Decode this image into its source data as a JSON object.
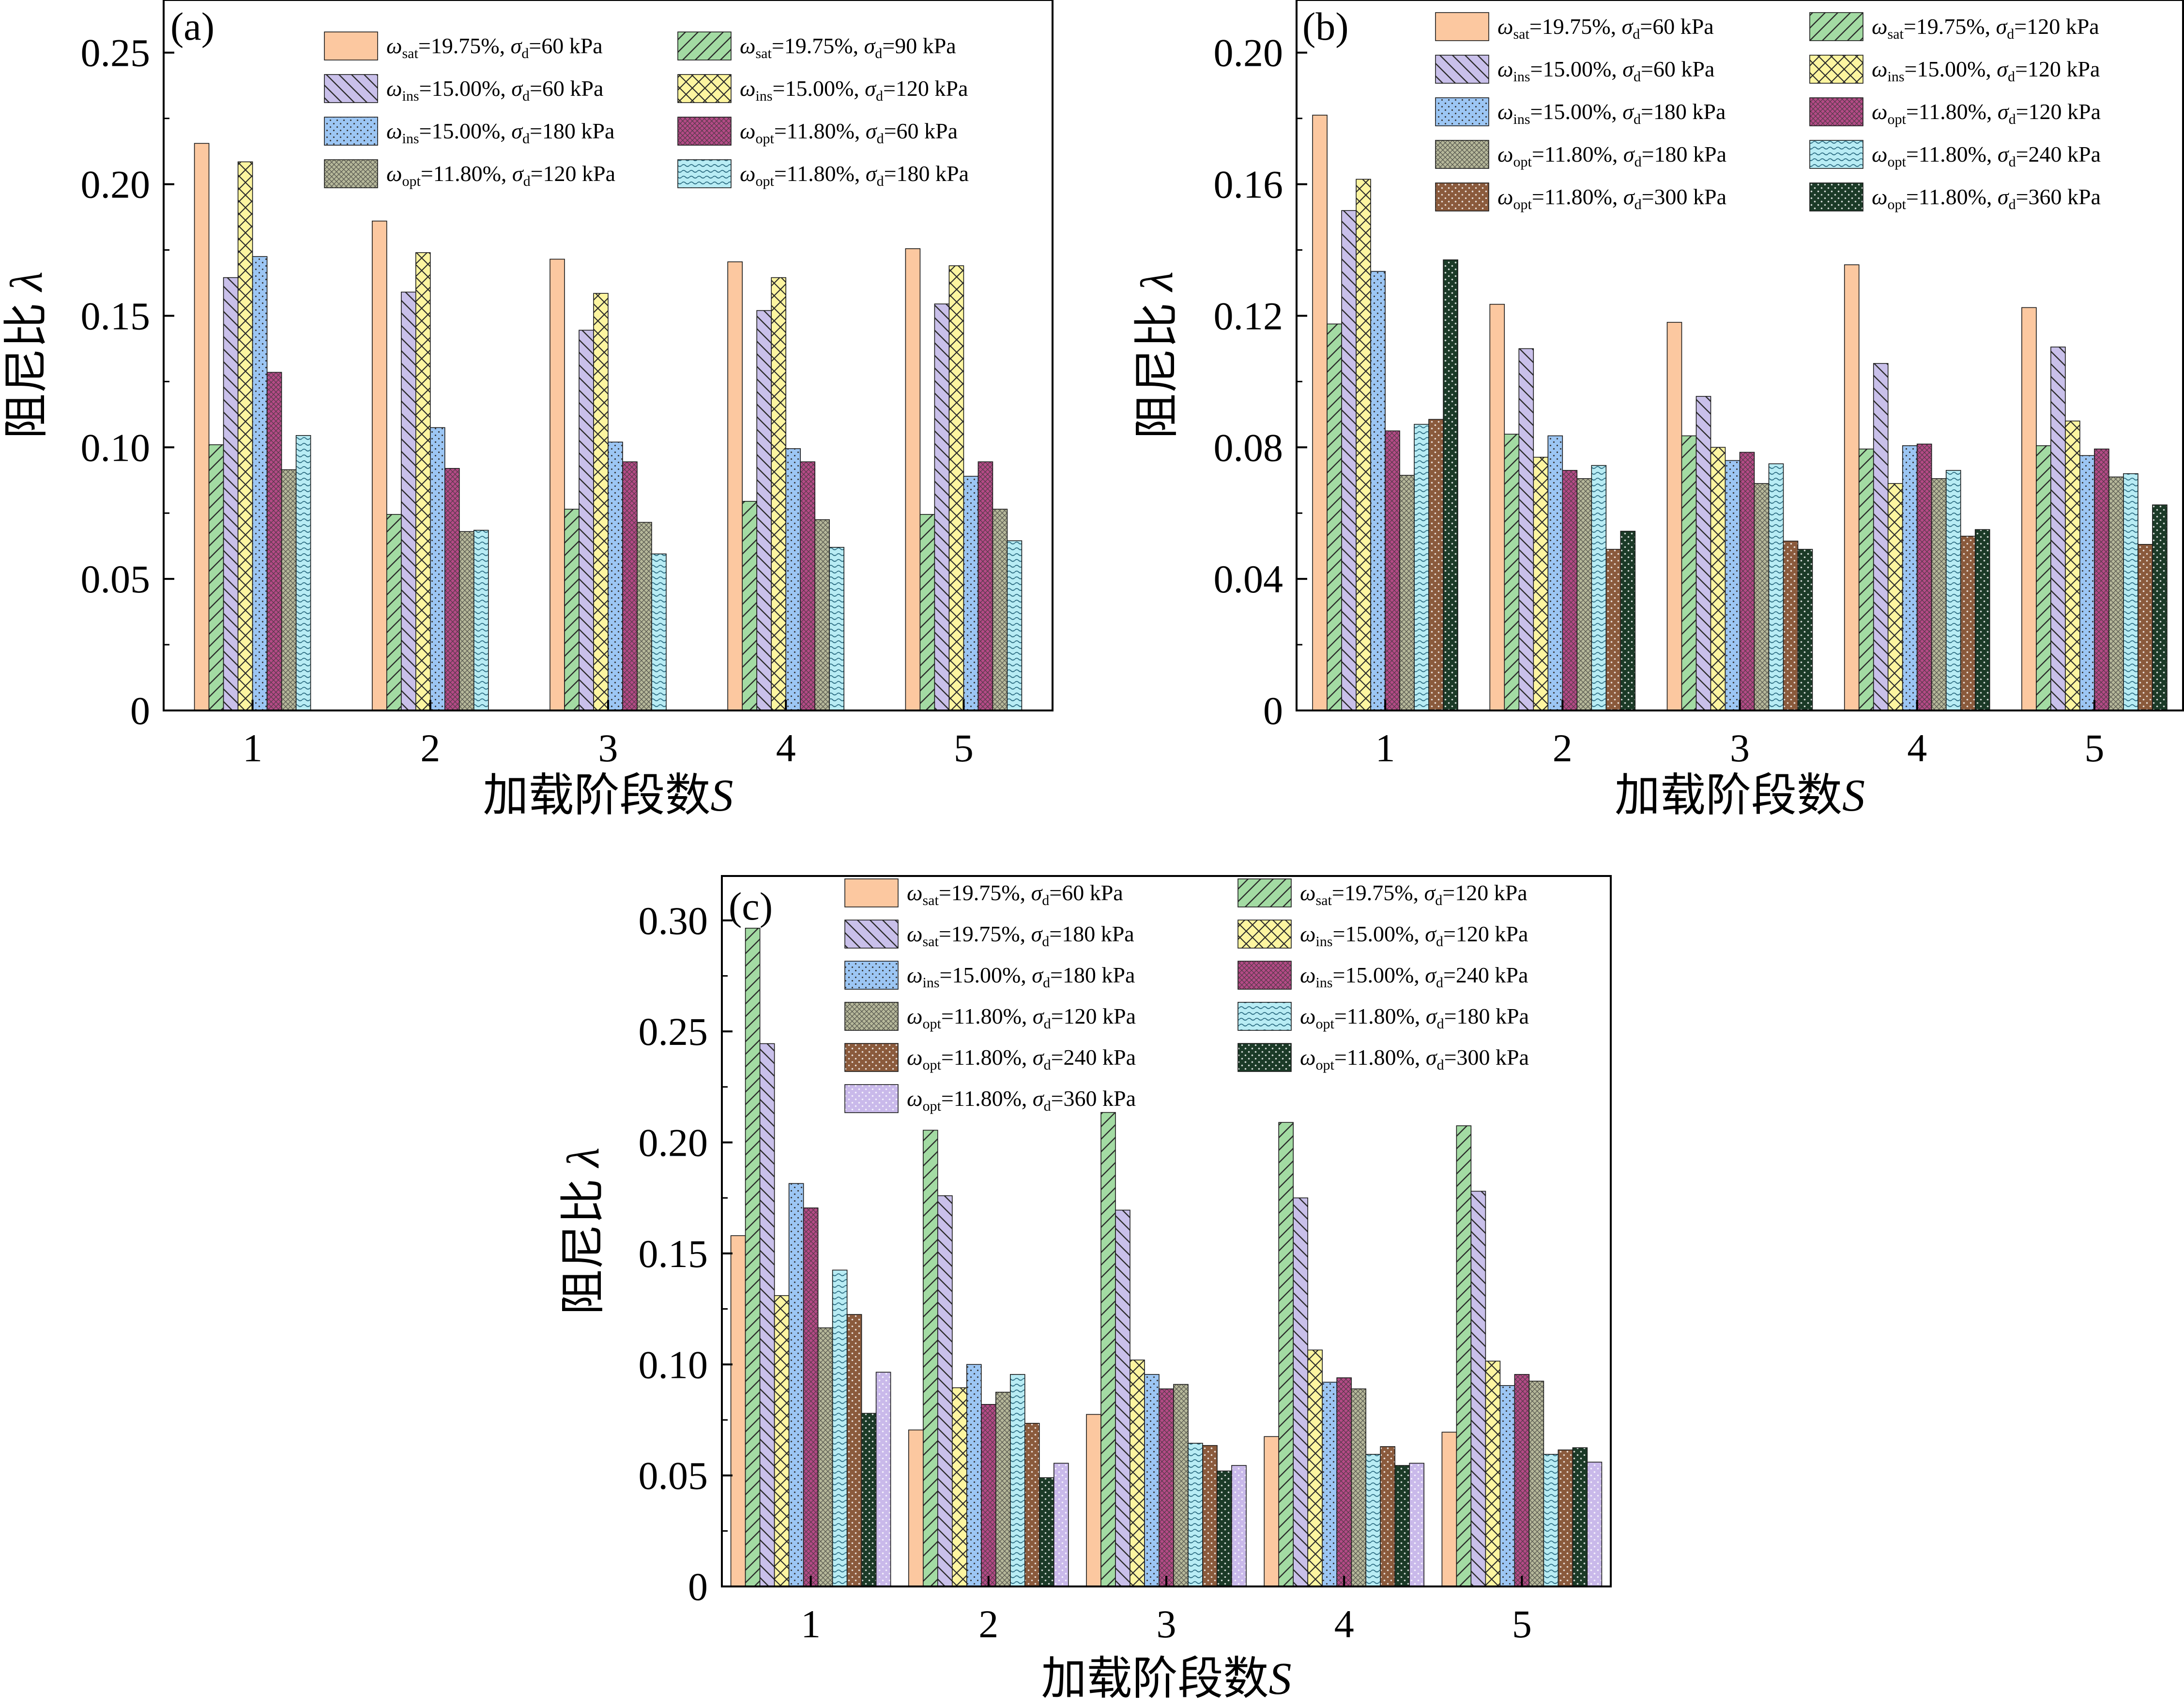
{
  "chart_data": [
    {
      "type": "bar",
      "panel_label": "(a)",
      "xlabel_main": "加载阶段数",
      "xlabel_var": "S",
      "ylabel_main": "阻尼比",
      "ylabel_var": "λ",
      "categories": [
        "1",
        "2",
        "3",
        "4",
        "5"
      ],
      "ylim": [
        0,
        0.27
      ],
      "yticks": [
        0,
        0.05,
        0.1,
        0.15,
        0.2,
        0.25
      ],
      "ytick_labels": [
        "0",
        "0.05",
        "0.10",
        "0.15",
        "0.20",
        "0.25"
      ],
      "legend_placement": "top",
      "series": [
        {
          "name": "ω_sat=19.75%, σ_d=60 kPa",
          "w": "ω",
          "wsub": "sat",
          "wval": "=19.75%,",
          "s": "σ",
          "ssub": "d",
          "sval": "=60 kPa",
          "color": "#fcc8a0",
          "pattern": "none",
          "values": [
            0.2155,
            0.186,
            0.1715,
            0.1705,
            0.1755
          ]
        },
        {
          "name": "ω_sat=19.75%, σ_d=90 kPa",
          "w": "ω",
          "wsub": "sat",
          "wval": "=19.75%,",
          "s": "σ",
          "ssub": "d",
          "sval": "=90 kPa",
          "color": "#a3dba3",
          "pattern": "slash",
          "values": [
            0.101,
            0.0745,
            0.0765,
            0.0795,
            0.0745
          ]
        },
        {
          "name": "ω_ins=15.00%, σ_d=60 kPa",
          "w": "ω",
          "wsub": "ins",
          "wval": "=15.00%,",
          "s": "σ",
          "ssub": "d",
          "sval": "=60 kPa",
          "color": "#c9c0ea",
          "pattern": "backslash",
          "values": [
            0.1645,
            0.159,
            0.1445,
            0.152,
            0.1545
          ]
        },
        {
          "name": "ω_ins=15.00%, σ_d=120 kPa",
          "w": "ω",
          "wsub": "ins",
          "wval": "=15.00%,",
          "s": "σ",
          "ssub": "d",
          "sval": "=120 kPa",
          "color": "#fdf5a0",
          "pattern": "cross",
          "values": [
            0.2085,
            0.174,
            0.1585,
            0.1645,
            0.169
          ]
        },
        {
          "name": "ω_ins=15.00%, σ_d=180 kPa",
          "w": "ω",
          "wsub": "ins",
          "wval": "=15.00%,",
          "s": "σ",
          "ssub": "d",
          "sval": "=180 kPa",
          "color": "#9cc6f4",
          "pattern": "dots",
          "values": [
            0.1725,
            0.1075,
            0.102,
            0.0995,
            0.089
          ]
        },
        {
          "name": "ω_opt=11.80%, σ_d=60 kPa",
          "w": "ω",
          "wsub": "opt",
          "wval": "=11.80%,",
          "s": "σ",
          "ssub": "d",
          "sval": "=60 kPa",
          "color": "#b44a86",
          "pattern": "dense",
          "values": [
            0.1285,
            0.092,
            0.0945,
            0.0945,
            0.0945
          ]
        },
        {
          "name": "ω_opt=11.80%, σ_d=120 kPa",
          "w": "ω",
          "wsub": "opt",
          "wval": "=11.80%,",
          "s": "σ",
          "ssub": "d",
          "sval": "=120 kPa",
          "color": "#b6b89a",
          "pattern": "dense",
          "values": [
            0.0915,
            0.068,
            0.0715,
            0.0725,
            0.0765
          ]
        },
        {
          "name": "ω_opt=11.80%, σ_d=180 kPa",
          "w": "ω",
          "wsub": "opt",
          "wval": "=11.80%,",
          "s": "σ",
          "ssub": "d",
          "sval": "=180 kPa",
          "color": "#b8ecf4",
          "pattern": "wave",
          "values": [
            0.1045,
            0.0685,
            0.0595,
            0.062,
            0.0645
          ]
        }
      ]
    },
    {
      "type": "bar",
      "panel_label": "(b)",
      "xlabel_main": "加载阶段数",
      "xlabel_var": "S",
      "ylabel_main": "阻尼比",
      "ylabel_var": "λ",
      "categories": [
        "1",
        "2",
        "3",
        "4",
        "5"
      ],
      "ylim": [
        0,
        0.216
      ],
      "yticks": [
        0,
        0.04,
        0.08,
        0.12,
        0.16,
        0.2
      ],
      "ytick_labels": [
        "0",
        "0.04",
        "0.08",
        "0.12",
        "0.16",
        "0.20"
      ],
      "legend_placement": "top",
      "series": [
        {
          "name": "ω_sat=19.75%, σ_d=60 kPa",
          "w": "ω",
          "wsub": "sat",
          "wval": "=19.75%,",
          "s": "σ",
          "ssub": "d",
          "sval": "=60 kPa",
          "color": "#fcc8a0",
          "pattern": "none",
          "values": [
            0.181,
            0.1235,
            0.118,
            0.1355,
            0.1225
          ]
        },
        {
          "name": "ω_sat=19.75%, σ_d=120 kPa",
          "w": "ω",
          "wsub": "sat",
          "wval": "=19.75%,",
          "s": "σ",
          "ssub": "d",
          "sval": "=120 kPa",
          "color": "#a3dba3",
          "pattern": "slash",
          "values": [
            0.1175,
            0.084,
            0.0835,
            0.0795,
            0.0805
          ]
        },
        {
          "name": "ω_ins=15.00%, σ_d=60 kPa",
          "w": "ω",
          "wsub": "ins",
          "wval": "=15.00%,",
          "s": "σ",
          "ssub": "d",
          "sval": "=60 kPa",
          "color": "#c9c0ea",
          "pattern": "backslash",
          "values": [
            0.152,
            0.11,
            0.0955,
            0.1055,
            0.1105
          ]
        },
        {
          "name": "ω_ins=15.00%, σ_d=120 kPa",
          "w": "ω",
          "wsub": "ins",
          "wval": "=15.00%,",
          "s": "σ",
          "ssub": "d",
          "sval": "=120 kPa",
          "color": "#fdf5a0",
          "pattern": "cross",
          "values": [
            0.1615,
            0.077,
            0.08,
            0.069,
            0.088
          ]
        },
        {
          "name": "ω_ins=15.00%, σ_d=180 kPa",
          "w": "ω",
          "wsub": "ins",
          "wval": "=15.00%,",
          "s": "σ",
          "ssub": "d",
          "sval": "=180 kPa",
          "color": "#9cc6f4",
          "pattern": "dots",
          "values": [
            0.1335,
            0.0835,
            0.076,
            0.0805,
            0.0775
          ]
        },
        {
          "name": "ω_opt=11.80%, σ_d=120 kPa",
          "w": "ω",
          "wsub": "opt",
          "wval": "=11.80%,",
          "s": "σ",
          "ssub": "d",
          "sval": "=120 kPa",
          "color": "#b44a86",
          "pattern": "dense",
          "values": [
            0.085,
            0.073,
            0.0785,
            0.081,
            0.0795
          ]
        },
        {
          "name": "ω_opt=11.80%, σ_d=180 kPa",
          "w": "ω",
          "wsub": "opt",
          "wval": "=11.80%,",
          "s": "σ",
          "ssub": "d",
          "sval": "=180 kPa",
          "color": "#b6b89a",
          "pattern": "dense",
          "values": [
            0.0715,
            0.0705,
            0.069,
            0.0705,
            0.071
          ]
        },
        {
          "name": "ω_opt=11.80%, σ_d=240 kPa",
          "w": "ω",
          "wsub": "opt",
          "wval": "=11.80%,",
          "s": "σ",
          "ssub": "d",
          "sval": "=240 kPa",
          "color": "#b8ecf4",
          "pattern": "wave",
          "values": [
            0.087,
            0.0745,
            0.075,
            0.073,
            0.072
          ]
        },
        {
          "name": "ω_opt=11.80%, σ_d=300 kPa",
          "w": "ω",
          "wsub": "opt",
          "wval": "=11.80%,",
          "s": "σ",
          "ssub": "d",
          "sval": "=300 kPa",
          "color": "#8a5a3c",
          "pattern": "lightdots",
          "values": [
            0.0885,
            0.049,
            0.0515,
            0.053,
            0.0505
          ]
        },
        {
          "name": "ω_opt=11.80%, σ_d=360 kPa",
          "w": "ω",
          "wsub": "opt",
          "wval": "=11.80%,",
          "s": "σ",
          "ssub": "d",
          "sval": "=360 kPa",
          "color": "#1b3a27",
          "pattern": "lightdots",
          "values": [
            0.137,
            0.0545,
            0.049,
            0.055,
            0.0625
          ]
        }
      ]
    },
    {
      "type": "bar",
      "panel_label": "(c)",
      "xlabel_main": "加载阶段数",
      "xlabel_var": "S",
      "ylabel_main": "阻尼比",
      "ylabel_var": "λ",
      "categories": [
        "1",
        "2",
        "3",
        "4",
        "5"
      ],
      "ylim": [
        0,
        0.32
      ],
      "yticks": [
        0,
        0.05,
        0.1,
        0.15,
        0.2,
        0.25,
        0.3
      ],
      "ytick_labels": [
        "0",
        "0.05",
        "0.10",
        "0.15",
        "0.20",
        "0.25",
        "0.30"
      ],
      "legend_placement": "top",
      "series": [
        {
          "name": "ω_sat=19.75%, σ_d=60 kPa",
          "w": "ω",
          "wsub": "sat",
          "wval": "=19.75%,",
          "s": "σ",
          "ssub": "d",
          "sval": "=60 kPa",
          "color": "#fcc8a0",
          "pattern": "none",
          "values": [
            0.158,
            0.0705,
            0.0775,
            0.0675,
            0.0695
          ]
        },
        {
          "name": "ω_sat=19.75%, σ_d=120 kPa",
          "w": "ω",
          "wsub": "sat",
          "wval": "=19.75%,",
          "s": "σ",
          "ssub": "d",
          "sval": "=120 kPa",
          "color": "#a3dba3",
          "pattern": "slash",
          "values": [
            0.2965,
            0.2055,
            0.2135,
            0.209,
            0.2075
          ]
        },
        {
          "name": "ω_sat=19.75%, σ_d=180 kPa",
          "w": "ω",
          "wsub": "sat",
          "wval": "=19.75%,",
          "s": "σ",
          "ssub": "d",
          "sval": "=180 kPa",
          "color": "#c9c0ea",
          "pattern": "backslash",
          "values": [
            0.2445,
            0.176,
            0.1695,
            0.175,
            0.178
          ]
        },
        {
          "name": "ω_ins=15.00%, σ_d=120 kPa",
          "w": "ω",
          "wsub": "ins",
          "wval": "=15.00%,",
          "s": "σ",
          "ssub": "d",
          "sval": "=120 kPa",
          "color": "#fdf5a0",
          "pattern": "cross",
          "values": [
            0.131,
            0.0895,
            0.102,
            0.1065,
            0.1015
          ]
        },
        {
          "name": "ω_ins=15.00%, σ_d=180 kPa",
          "w": "ω",
          "wsub": "ins",
          "wval": "=15.00%,",
          "s": "σ",
          "ssub": "d",
          "sval": "=180 kPa",
          "color": "#9cc6f4",
          "pattern": "dots",
          "values": [
            0.1815,
            0.1,
            0.0955,
            0.092,
            0.0905
          ]
        },
        {
          "name": "ω_ins=15.00%, σ_d=240 kPa",
          "w": "ω",
          "wsub": "ins",
          "wval": "=15.00%,",
          "s": "σ",
          "ssub": "d",
          "sval": "=240 kPa",
          "color": "#b44a86",
          "pattern": "dense",
          "values": [
            0.1705,
            0.082,
            0.089,
            0.094,
            0.0955
          ]
        },
        {
          "name": "ω_opt=11.80%, σ_d=120 kPa",
          "w": "ω",
          "wsub": "opt",
          "wval": "=11.80%,",
          "s": "σ",
          "ssub": "d",
          "sval": "=120 kPa",
          "color": "#b6b89a",
          "pattern": "dense",
          "values": [
            0.1165,
            0.0875,
            0.091,
            0.089,
            0.0925
          ]
        },
        {
          "name": "ω_opt=11.80%, σ_d=180 kPa",
          "w": "ω",
          "wsub": "opt",
          "wval": "=11.80%,",
          "s": "σ",
          "ssub": "d",
          "sval": "=180 kPa",
          "color": "#b8ecf4",
          "pattern": "wave",
          "values": [
            0.1425,
            0.0955,
            0.0645,
            0.0595,
            0.0595
          ]
        },
        {
          "name": "ω_opt=11.80%, σ_d=240 kPa",
          "w": "ω",
          "wsub": "opt",
          "wval": "=11.80%,",
          "s": "σ",
          "ssub": "d",
          "sval": "=240 kPa",
          "color": "#8a5a3c",
          "pattern": "lightdots",
          "values": [
            0.1225,
            0.0735,
            0.0635,
            0.063,
            0.0615
          ]
        },
        {
          "name": "ω_opt=11.80%, σ_d=300 kPa",
          "w": "ω",
          "wsub": "opt",
          "wval": "=11.80%,",
          "s": "σ",
          "ssub": "d",
          "sval": "=300 kPa",
          "color": "#1b3a27",
          "pattern": "lightdots",
          "values": [
            0.078,
            0.049,
            0.052,
            0.0545,
            0.0625
          ]
        },
        {
          "name": "ω_opt=11.80%, σ_d=360 kPa",
          "w": "ω",
          "wsub": "opt",
          "wval": "=11.80%,",
          "s": "σ",
          "ssub": "d",
          "sval": "=360 kPa",
          "color": "#c9b9ea",
          "pattern": "lightdots",
          "values": [
            0.0965,
            0.0555,
            0.0545,
            0.0555,
            0.056
          ]
        }
      ]
    }
  ]
}
